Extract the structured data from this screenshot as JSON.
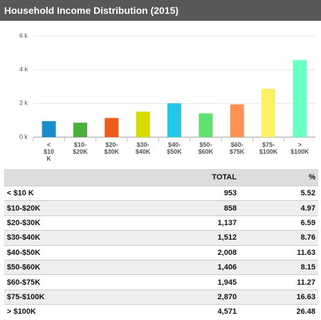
{
  "header": {
    "title": "Household Income Distribution (2015)"
  },
  "chart_data": {
    "type": "bar",
    "categories": [
      "< $10 K",
      "$10-$20K",
      "$20-$30K",
      "$30-$40K",
      "$40-$50K",
      "$50-$60K",
      "$60-$75K",
      "$75-$100K",
      "> $100K"
    ],
    "values": [
      953,
      858,
      1137,
      1512,
      2008,
      1406,
      1945,
      2870,
      4571
    ],
    "colors": [
      "#1a8ccb",
      "#4cb03c",
      "#f05a1e",
      "#d6dc00",
      "#24c8e6",
      "#60e070",
      "#ff9152",
      "#fff064",
      "#6cffc4"
    ],
    "ylim": [
      0,
      6000
    ],
    "yticks": [
      {
        "value": 0,
        "label": "0 k"
      },
      {
        "value": 2000,
        "label": "2 k"
      },
      {
        "value": 4000,
        "label": "4 k"
      },
      {
        "value": 6000,
        "label": "6 k"
      }
    ],
    "grid": true
  },
  "table": {
    "columns": [
      "TOTAL",
      "%"
    ],
    "rows": [
      [
        "< $10 K",
        "953",
        "5.52"
      ],
      [
        "$10-$20K",
        "858",
        "4.97"
      ],
      [
        "$20-$30K",
        "1,137",
        "6.59"
      ],
      [
        "$30-$40K",
        "1,512",
        "8.76"
      ],
      [
        "$40-$50K",
        "2,008",
        "11.63"
      ],
      [
        "$50-$60K",
        "1,406",
        "8.15"
      ],
      [
        "$60-$75K",
        "1,945",
        "11.27"
      ],
      [
        "$75-$100K",
        "2,870",
        "16.63"
      ],
      [
        "> $100K",
        "4,571",
        "26.48"
      ]
    ]
  }
}
